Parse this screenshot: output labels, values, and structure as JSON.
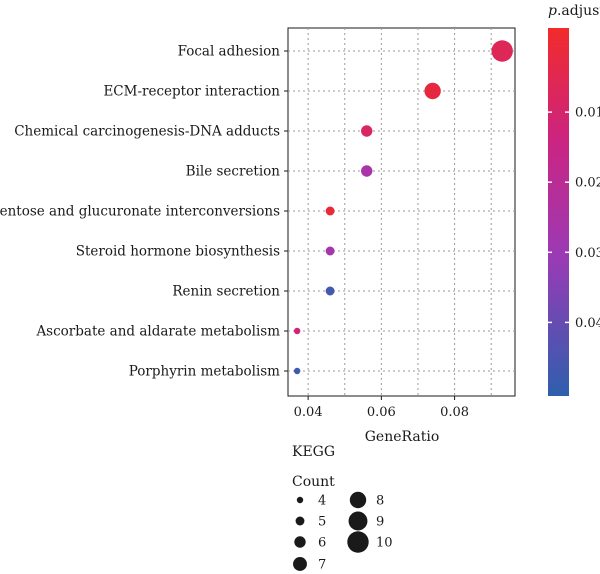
{
  "chart_data": {
    "type": "scatter",
    "xlabel": "GeneRatio",
    "x_ticks": [
      0.04,
      0.06,
      0.08
    ],
    "xlim": [
      0.0345,
      0.0965
    ],
    "grid": true,
    "categories": [
      "Focal adhesion",
      "ECM-receptor interaction",
      "Chemical carcinogenesis-DNA adducts",
      "Bile secretion",
      "Pentose and glucuronate interconversions",
      "Steroid hormone biosynthesis",
      "Renin secretion",
      "Ascorbate and aldarate metabolism",
      "Porphyrin metabolism"
    ],
    "points": [
      {
        "term": "Focal adhesion",
        "gene_ratio": 0.093,
        "count": 10,
        "p_adjust": 0.006
      },
      {
        "term": "ECM-receptor interaction",
        "gene_ratio": 0.074,
        "count": 8,
        "p_adjust": 0.002
      },
      {
        "term": "Chemical carcinogenesis-DNA adducts",
        "gene_ratio": 0.056,
        "count": 6,
        "p_adjust": 0.008
      },
      {
        "term": "Bile secretion",
        "gene_ratio": 0.056,
        "count": 6,
        "p_adjust": 0.026
      },
      {
        "term": "Pentose and glucuronate interconversions",
        "gene_ratio": 0.046,
        "count": 5,
        "p_adjust": 0.001
      },
      {
        "term": "Steroid hormone biosynthesis",
        "gene_ratio": 0.046,
        "count": 5,
        "p_adjust": 0.027
      },
      {
        "term": "Renin secretion",
        "gene_ratio": 0.046,
        "count": 5,
        "p_adjust": 0.047
      },
      {
        "term": "Ascorbate and aldarate metabolism",
        "gene_ratio": 0.037,
        "count": 4,
        "p_adjust": 0.012
      },
      {
        "term": "Porphyrin metabolism",
        "gene_ratio": 0.037,
        "count": 4,
        "p_adjust": 0.048
      }
    ],
    "color_scale": {
      "title_italic": "p",
      "title_rest": ".adjust",
      "min": -0.002,
      "max": 0.0505,
      "ticks": [
        0.01,
        0.02,
        0.03,
        0.04
      ],
      "tick_labels": [
        "0.01",
        "0.02",
        "0.03",
        "0.04"
      ],
      "colors": [
        "#ee2a2a",
        "#cc2480",
        "#9b3ab5",
        "#2f5fae"
      ]
    },
    "size_legend": {
      "category": "KEGG",
      "title": "Count",
      "values": [
        4,
        5,
        6,
        7,
        8,
        9,
        10
      ],
      "labels": [
        "4",
        "5",
        "6",
        "7",
        "8",
        "9",
        "10"
      ]
    }
  }
}
